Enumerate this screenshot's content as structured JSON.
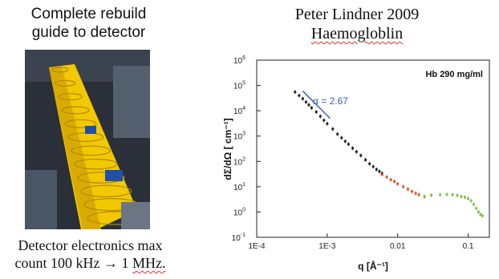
{
  "left_panel": {
    "title_line1": "Complete rebuild",
    "title_line2": "guide to detector",
    "caption_line1": "Detector electronics max",
    "caption_line2_pre": "count 100 kHz → 1 ",
    "caption_line2_unit": "MHz.",
    "photo_colors": {
      "background": "#2a2f3a",
      "guide": "#f2c800",
      "accent": "#1f4fa8"
    }
  },
  "right_panel": {
    "title_line1": "Peter Lindner 2009",
    "title_line2": "Haemogloblin"
  },
  "chart_data": {
    "type": "scatter",
    "title": "",
    "annotation": "Hb 290 mg/ml",
    "slope_label": "α = 2.67",
    "xlabel": "q [Å⁻¹]",
    "ylabel": "dΣ/dΩ [ cm⁻¹]",
    "x_scale": "log",
    "y_scale": "log",
    "xlim": [
      0.0001,
      0.2
    ],
    "ylim": [
      0.1,
      1000000
    ],
    "x_ticks": [
      {
        "value": 0.0001,
        "label": "1E-4"
      },
      {
        "value": 0.001,
        "label": "1E-3"
      },
      {
        "value": 0.01,
        "label": "0.01"
      },
      {
        "value": 0.1,
        "label": "0.1"
      }
    ],
    "y_ticks": [
      {
        "value": 0.1,
        "base": "10",
        "exp": "-1"
      },
      {
        "value": 1,
        "base": "10",
        "exp": "0"
      },
      {
        "value": 10,
        "base": "10",
        "exp": "1"
      },
      {
        "value": 100,
        "base": "10",
        "exp": "2"
      },
      {
        "value": 1000,
        "base": "10",
        "exp": "3"
      },
      {
        "value": 10000,
        "base": "10",
        "exp": "4"
      },
      {
        "value": 100000,
        "base": "10",
        "exp": "5"
      },
      {
        "value": 1000000,
        "base": "10",
        "exp": "6"
      }
    ],
    "grid": false,
    "slope_line": {
      "x": [
        0.00045,
        0.0011
      ],
      "y": [
        60000,
        5000
      ],
      "color": "#3a5db5"
    },
    "series": [
      {
        "color": "#222222",
        "points": [
          [
            0.00035,
            55000
          ],
          [
            0.0004,
            40000
          ],
          [
            0.00045,
            30000
          ],
          [
            0.0005,
            22000
          ],
          [
            0.00055,
            17000
          ],
          [
            0.0006,
            13000
          ],
          [
            0.0007,
            9000
          ],
          [
            0.0008,
            6000
          ],
          [
            0.0009,
            4200
          ],
          [
            0.001,
            3100
          ],
          [
            0.0012,
            1900
          ],
          [
            0.0014,
            1200
          ],
          [
            0.0016,
            850
          ],
          [
            0.0018,
            620
          ],
          [
            0.002,
            480
          ],
          [
            0.0023,
            330
          ],
          [
            0.0026,
            240
          ],
          [
            0.003,
            170
          ],
          [
            0.0035,
            115
          ],
          [
            0.004,
            80
          ],
          [
            0.0045,
            62
          ],
          [
            0.005,
            48
          ],
          [
            0.0055,
            40
          ],
          [
            0.006,
            34
          ]
        ]
      },
      {
        "color": "#d9532b",
        "points": [
          [
            0.006,
            30
          ],
          [
            0.007,
            24
          ],
          [
            0.008,
            19
          ],
          [
            0.009,
            16
          ],
          [
            0.01,
            13
          ],
          [
            0.012,
            10
          ],
          [
            0.014,
            8
          ],
          [
            0.016,
            6.5
          ],
          [
            0.018,
            5.5
          ],
          [
            0.02,
            4.8
          ],
          [
            0.024,
            4
          ]
        ]
      },
      {
        "color": "#7cc24a",
        "points": [
          [
            0.024,
            4.2
          ],
          [
            0.03,
            4.6
          ],
          [
            0.04,
            4.8
          ],
          [
            0.05,
            4.9
          ],
          [
            0.06,
            4.8
          ],
          [
            0.07,
            4.5
          ],
          [
            0.08,
            4.1
          ],
          [
            0.09,
            3.8
          ],
          [
            0.1,
            3.4
          ],
          [
            0.11,
            2.8
          ],
          [
            0.12,
            2
          ],
          [
            0.13,
            1.4
          ],
          [
            0.14,
            1
          ],
          [
            0.15,
            0.8
          ],
          [
            0.16,
            0.7
          ]
        ]
      }
    ]
  }
}
